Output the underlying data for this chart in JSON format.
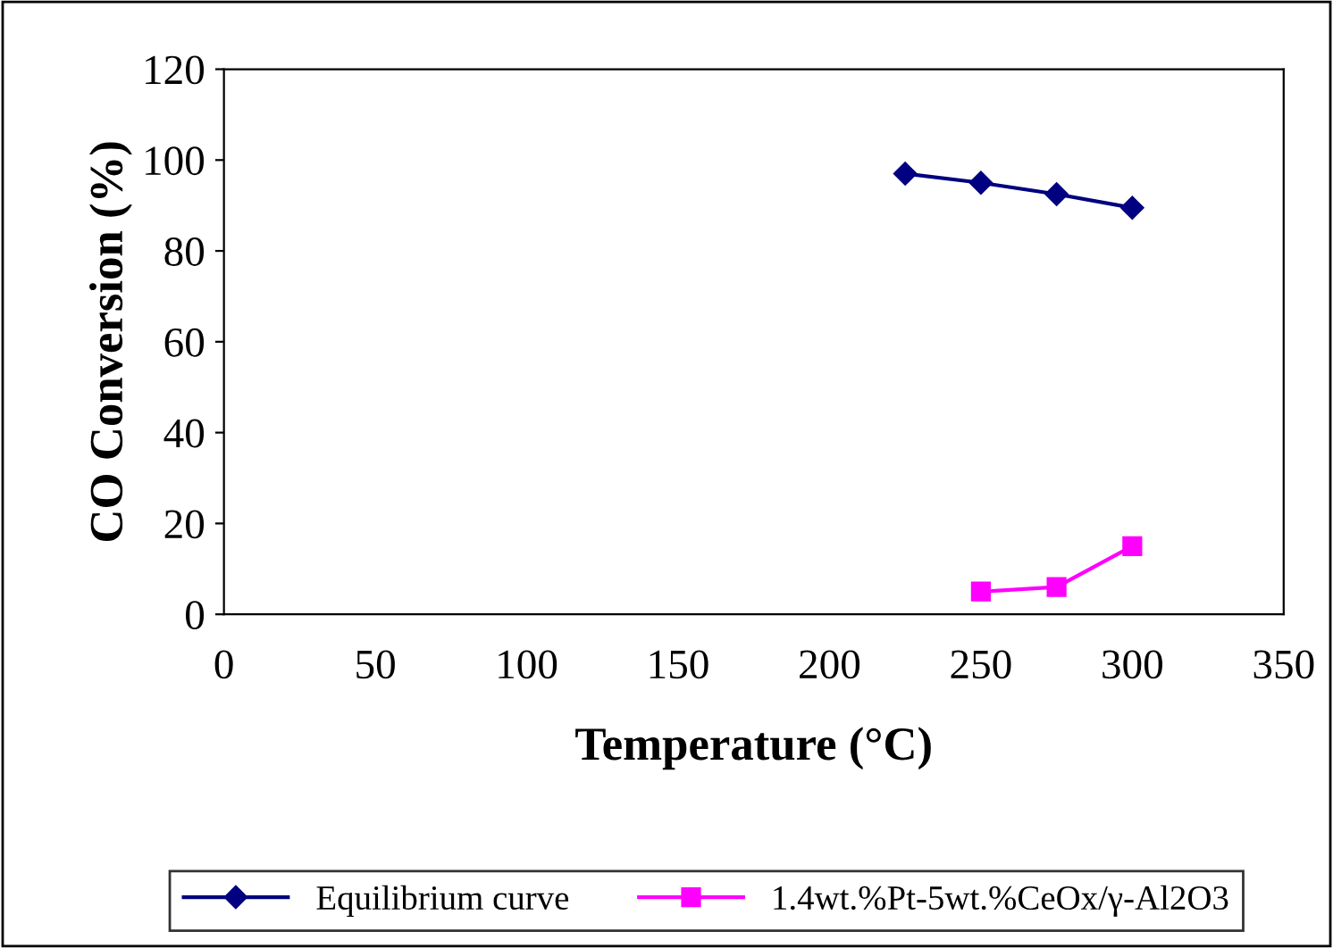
{
  "chart_data": {
    "type": "line",
    "xlabel": "Temperature (°C)",
    "ylabel": "CO Conversion (%)",
    "series": [
      {
        "name": "Equilibrium curve",
        "color": "#000080",
        "x": [
          225,
          250,
          275,
          300
        ],
        "values": [
          97,
          95,
          92.5,
          89.5
        ],
        "marker": "diamond"
      },
      {
        "name": "1.4wt.%Pt-5wt.%CeOx/γ-Al2O3",
        "color": "#ff00ff",
        "x": [
          250,
          275,
          300
        ],
        "values": [
          5,
          6,
          15
        ],
        "marker": "square"
      }
    ],
    "xlim": [
      0,
      350
    ],
    "xticks": [
      0,
      50,
      100,
      150,
      200,
      250,
      300,
      350
    ],
    "ylim": [
      0,
      120
    ],
    "yticks": [
      0,
      20,
      40,
      60,
      80,
      100,
      120
    ],
    "grid": false,
    "legend": "bottom",
    "line_style": "solid"
  }
}
